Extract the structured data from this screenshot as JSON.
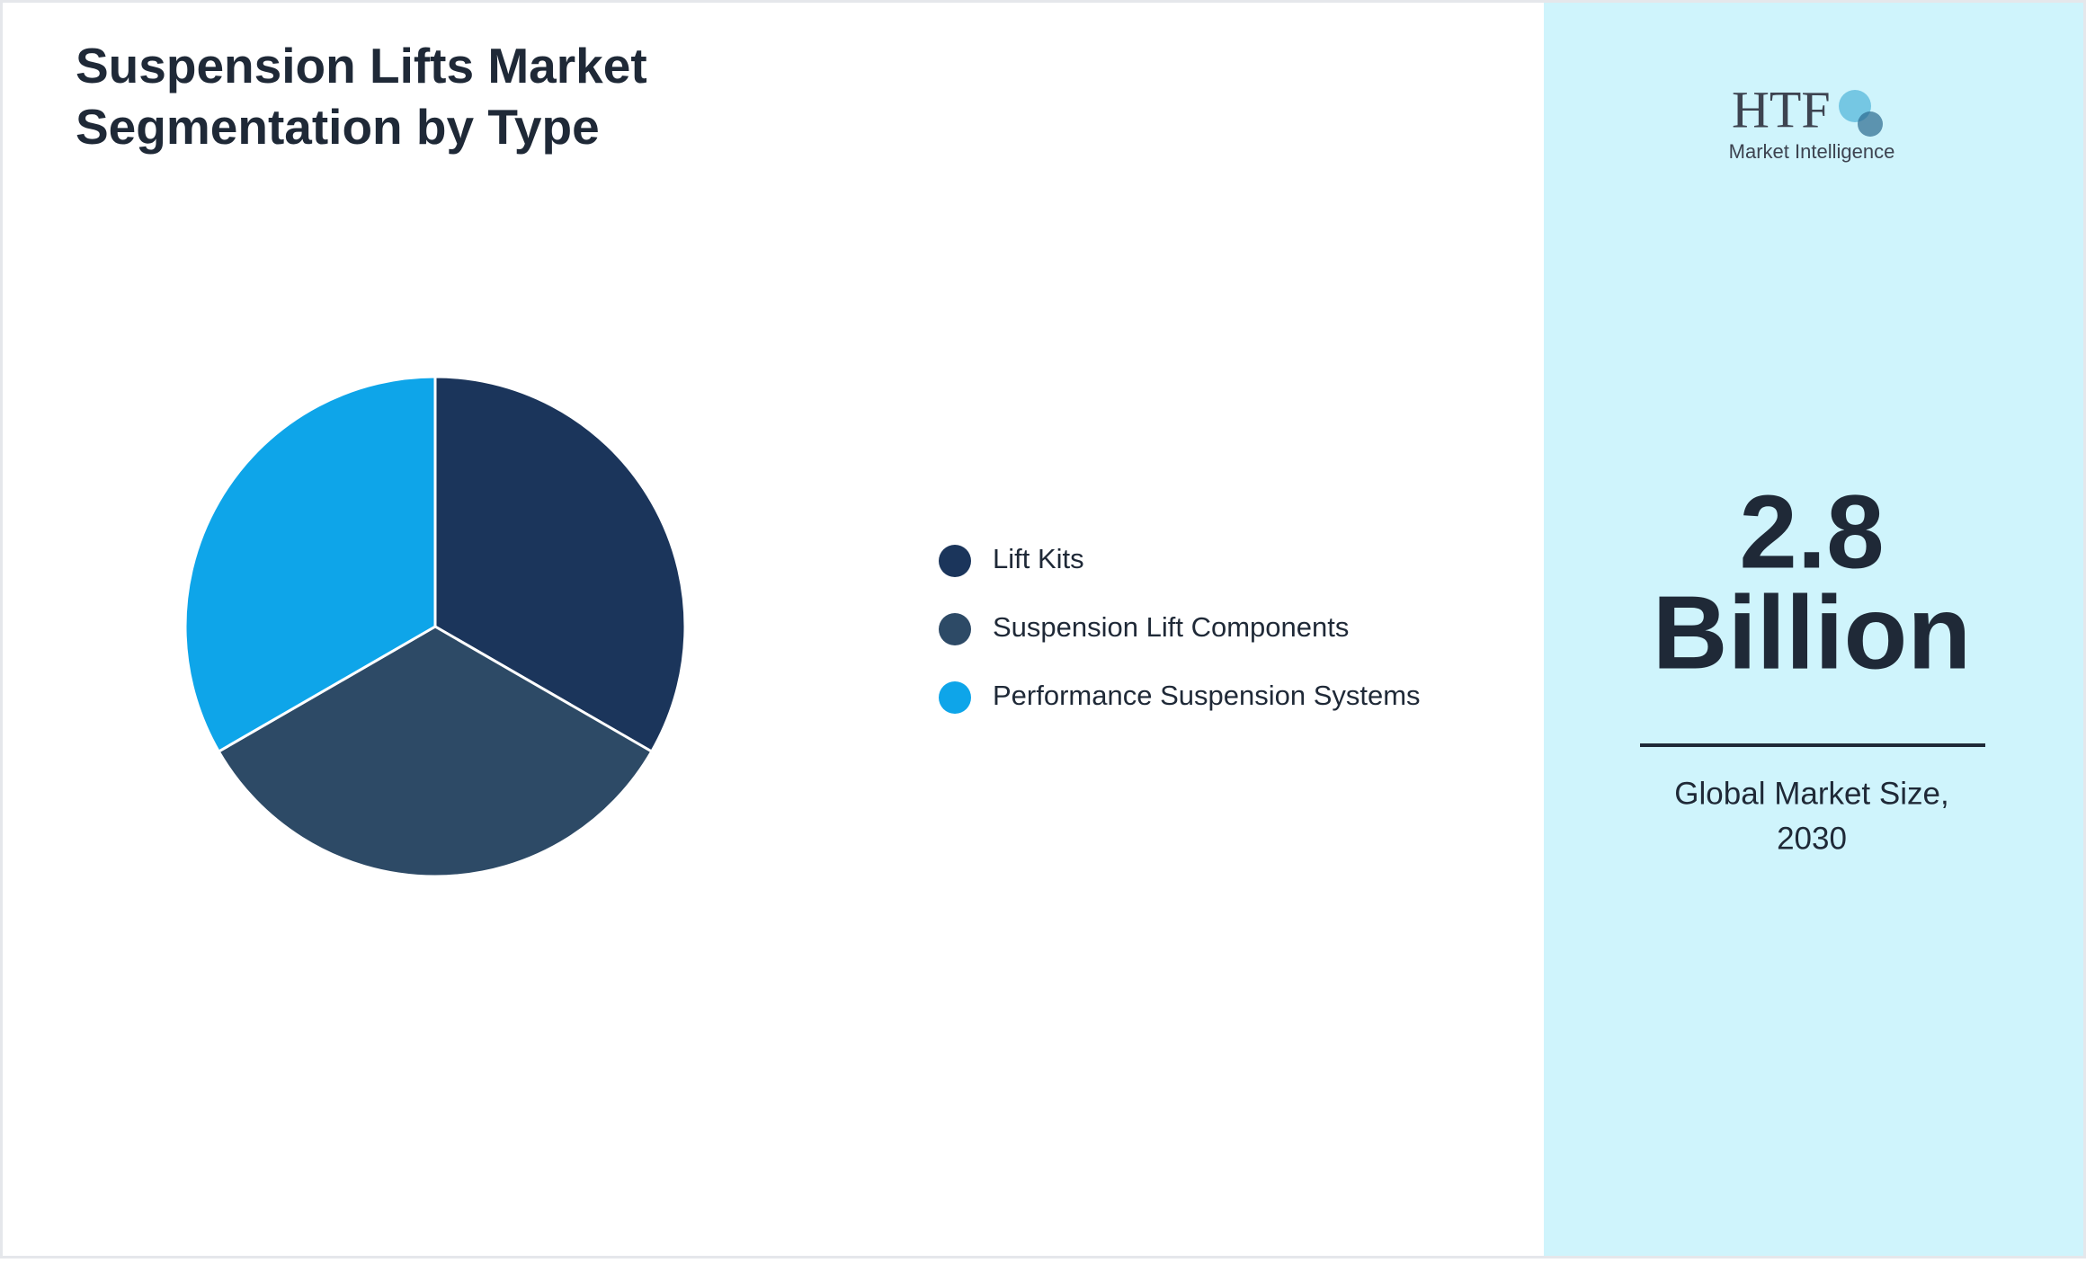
{
  "chart_data": {
    "type": "pie",
    "title": "Suspension Lifts Market Segmentation by Type",
    "categories": [
      "Lift Kits",
      "Suspension Lift Components",
      "Performance Suspension Systems"
    ],
    "values": [
      33.3,
      33.3,
      33.3
    ],
    "colors": [
      "#1b355b",
      "#2d4a66",
      "#0ea5e9"
    ]
  },
  "side_panel": {
    "logo": {
      "brand": "HTF",
      "tagline": "Market Intelligence"
    },
    "headline_value": "2.8",
    "headline_unit": "Billion",
    "caption_line1": "Global Market Size,",
    "caption_line2": "2030"
  }
}
